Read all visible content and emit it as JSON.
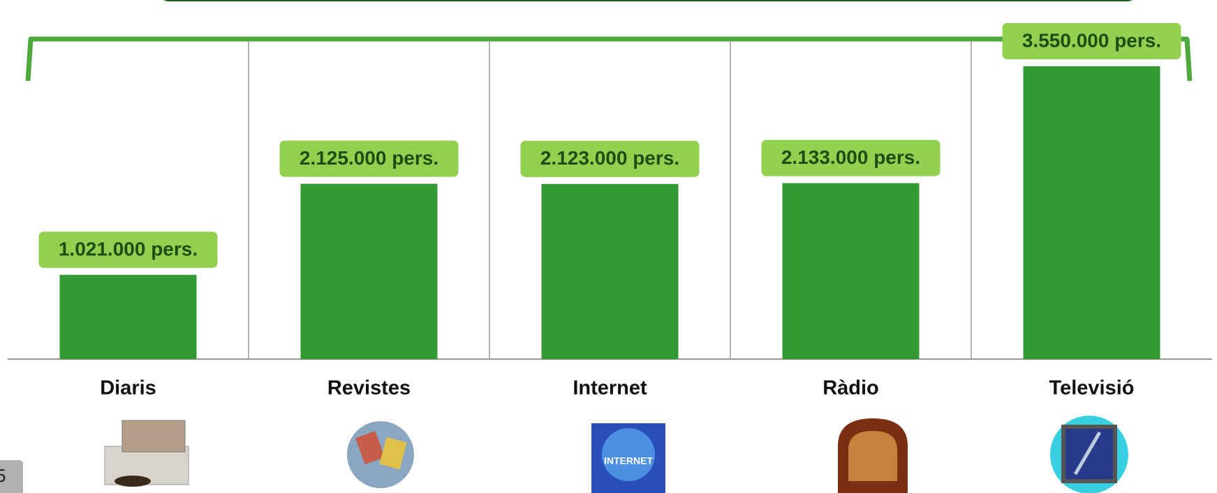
{
  "page_number": "5",
  "chart_data": {
    "type": "bar",
    "categories": [
      "Diaris",
      "Revistes",
      "Internet",
      "Ràdio",
      "Televisió"
    ],
    "values": [
      1021000,
      2125000,
      2123000,
      2133000,
      3550000
    ],
    "value_labels": [
      "1.021.000 pers.",
      "2.125.000 pers.",
      "2.123.000 pers.",
      "2.133.000 pers.",
      "3.550.000 pers."
    ],
    "color": "#339933",
    "label_color": "#92d050"
  }
}
